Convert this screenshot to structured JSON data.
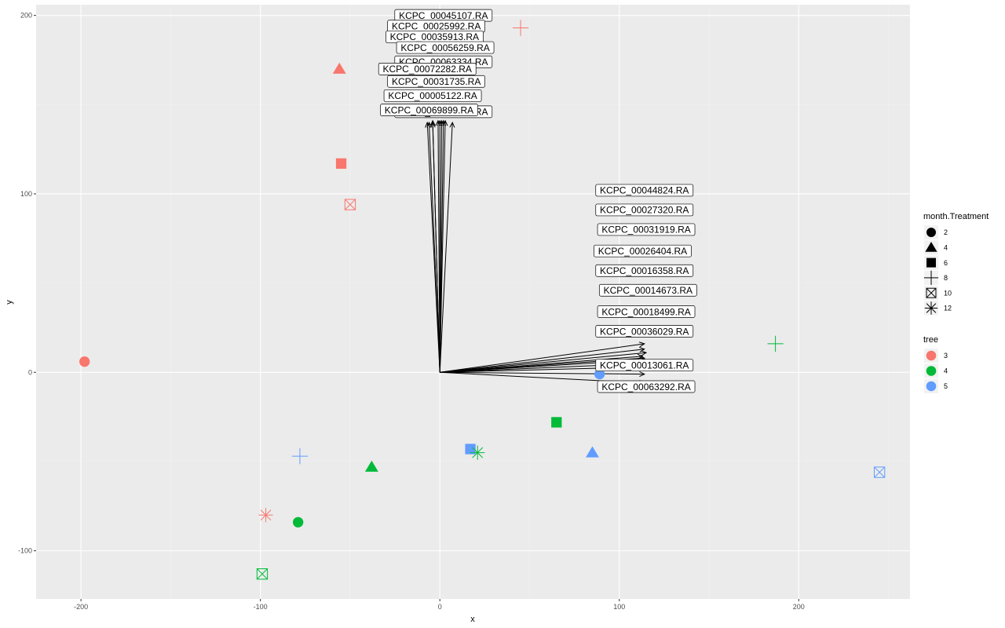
{
  "chart_data": {
    "type": "scatter",
    "xlabel": "x",
    "ylabel": "y",
    "xlim": [
      -225,
      262
    ],
    "ylim": [
      -127,
      206
    ],
    "x_ticks": [
      -200,
      -100,
      0,
      100,
      200
    ],
    "y_ticks": [
      -100,
      0,
      100,
      200
    ],
    "grid": true,
    "background": "#ebebeb",
    "legend_position": "right",
    "shape_legend": {
      "title": "month.Treatment",
      "entries": [
        {
          "label": "2",
          "shape": "circle"
        },
        {
          "label": "4",
          "shape": "triangle"
        },
        {
          "label": "6",
          "shape": "square"
        },
        {
          "label": "8",
          "shape": "plus"
        },
        {
          "label": "10",
          "shape": "boxed-x"
        },
        {
          "label": "12",
          "shape": "asterisk"
        }
      ]
    },
    "color_legend": {
      "title": "tree",
      "entries": [
        {
          "label": "3",
          "color": "#F8766D"
        },
        {
          "label": "4",
          "color": "#00BA38"
        },
        {
          "label": "5",
          "color": "#619CFF"
        }
      ]
    },
    "points": [
      {
        "x": -198,
        "y": 6,
        "month": "2",
        "tree": "3"
      },
      {
        "x": -79,
        "y": -84,
        "month": "2",
        "tree": "4"
      },
      {
        "x": 89,
        "y": -1,
        "month": "2",
        "tree": "5"
      },
      {
        "x": -56,
        "y": 170,
        "month": "4",
        "tree": "3"
      },
      {
        "x": -38,
        "y": -53,
        "month": "4",
        "tree": "4"
      },
      {
        "x": 85,
        "y": -45,
        "month": "4",
        "tree": "5"
      },
      {
        "x": -55,
        "y": 117,
        "month": "6",
        "tree": "3"
      },
      {
        "x": 65,
        "y": -28,
        "month": "6",
        "tree": "4"
      },
      {
        "x": 17,
        "y": -43,
        "month": "6",
        "tree": "5"
      },
      {
        "x": 45,
        "y": 193,
        "month": "8",
        "tree": "3"
      },
      {
        "x": 187,
        "y": 16,
        "month": "8",
        "tree": "4"
      },
      {
        "x": -78,
        "y": -47,
        "month": "8",
        "tree": "5"
      },
      {
        "x": -50,
        "y": 94,
        "month": "10",
        "tree": "3"
      },
      {
        "x": -99,
        "y": -113,
        "month": "10",
        "tree": "4"
      },
      {
        "x": 245,
        "y": -56,
        "month": "10",
        "tree": "5"
      },
      {
        "x": -97,
        "y": -80,
        "month": "12",
        "tree": "3"
      },
      {
        "x": 21,
        "y": -45,
        "month": "12",
        "tree": "4"
      }
    ],
    "vectors": [
      {
        "label": "KCPC_00045107.RA",
        "x": 2,
        "y": 141,
        "lx": 2,
        "ly": 200
      },
      {
        "label": "KCPC_00025992.RA",
        "x": 0,
        "y": 141,
        "lx": -2,
        "ly": 194
      },
      {
        "label": "KCPC_00035913.RA",
        "x": -4,
        "y": 140,
        "lx": -3,
        "ly": 188
      },
      {
        "label": "KCPC_00056259.RA",
        "x": 3,
        "y": 141,
        "lx": 3,
        "ly": 182
      },
      {
        "label": "KCPC_00063334.RA",
        "x": 7,
        "y": 140,
        "lx": 2,
        "ly": 174
      },
      {
        "label": "KCPC_00072282.RA",
        "x": -7,
        "y": 140,
        "lx": -7,
        "ly": 170
      },
      {
        "label": "KCPC_00031735.RA",
        "x": -1,
        "y": 141,
        "lx": -2,
        "ly": 163
      },
      {
        "label": "KCPC_00005122.RA",
        "x": -4,
        "y": 141,
        "lx": -4,
        "ly": 155
      },
      {
        "label": "KCPC_00064813.RA",
        "x": 1,
        "y": 141,
        "lx": 2,
        "ly": 146
      },
      {
        "label": "KCPC_00069899.RA",
        "x": -6,
        "y": 140,
        "lx": -6,
        "ly": 147
      },
      {
        "label": "KCPC_00044824.RA",
        "x": 114,
        "y": 16,
        "lx": 114,
        "ly": 102
      },
      {
        "label": "KCPC_00027320.RA",
        "x": 114,
        "y": 13,
        "lx": 114,
        "ly": 91
      },
      {
        "label": "KCPC_00031919.RA",
        "x": 115,
        "y": 11,
        "lx": 115,
        "ly": 80
      },
      {
        "label": "KCPC_00026404.RA",
        "x": 113,
        "y": 9,
        "lx": 113,
        "ly": 68
      },
      {
        "label": "KCPC_00016358.RA",
        "x": 114,
        "y": 8,
        "lx": 114,
        "ly": 57
      },
      {
        "label": "KCPC_00014673.RA",
        "x": 115,
        "y": 7,
        "lx": 116,
        "ly": 46
      },
      {
        "label": "KCPC_00018499.RA",
        "x": 114,
        "y": 5,
        "lx": 115,
        "ly": 34
      },
      {
        "label": "KCPC_00036029.RA",
        "x": 114,
        "y": 3,
        "lx": 114,
        "ly": 23
      },
      {
        "label": "KCPC_00013061.RA",
        "x": 114,
        "y": -1,
        "lx": 114,
        "ly": 4
      },
      {
        "label": "KCPC_00063292.RA",
        "x": 114,
        "y": -6,
        "lx": 115,
        "ly": -8
      }
    ]
  }
}
